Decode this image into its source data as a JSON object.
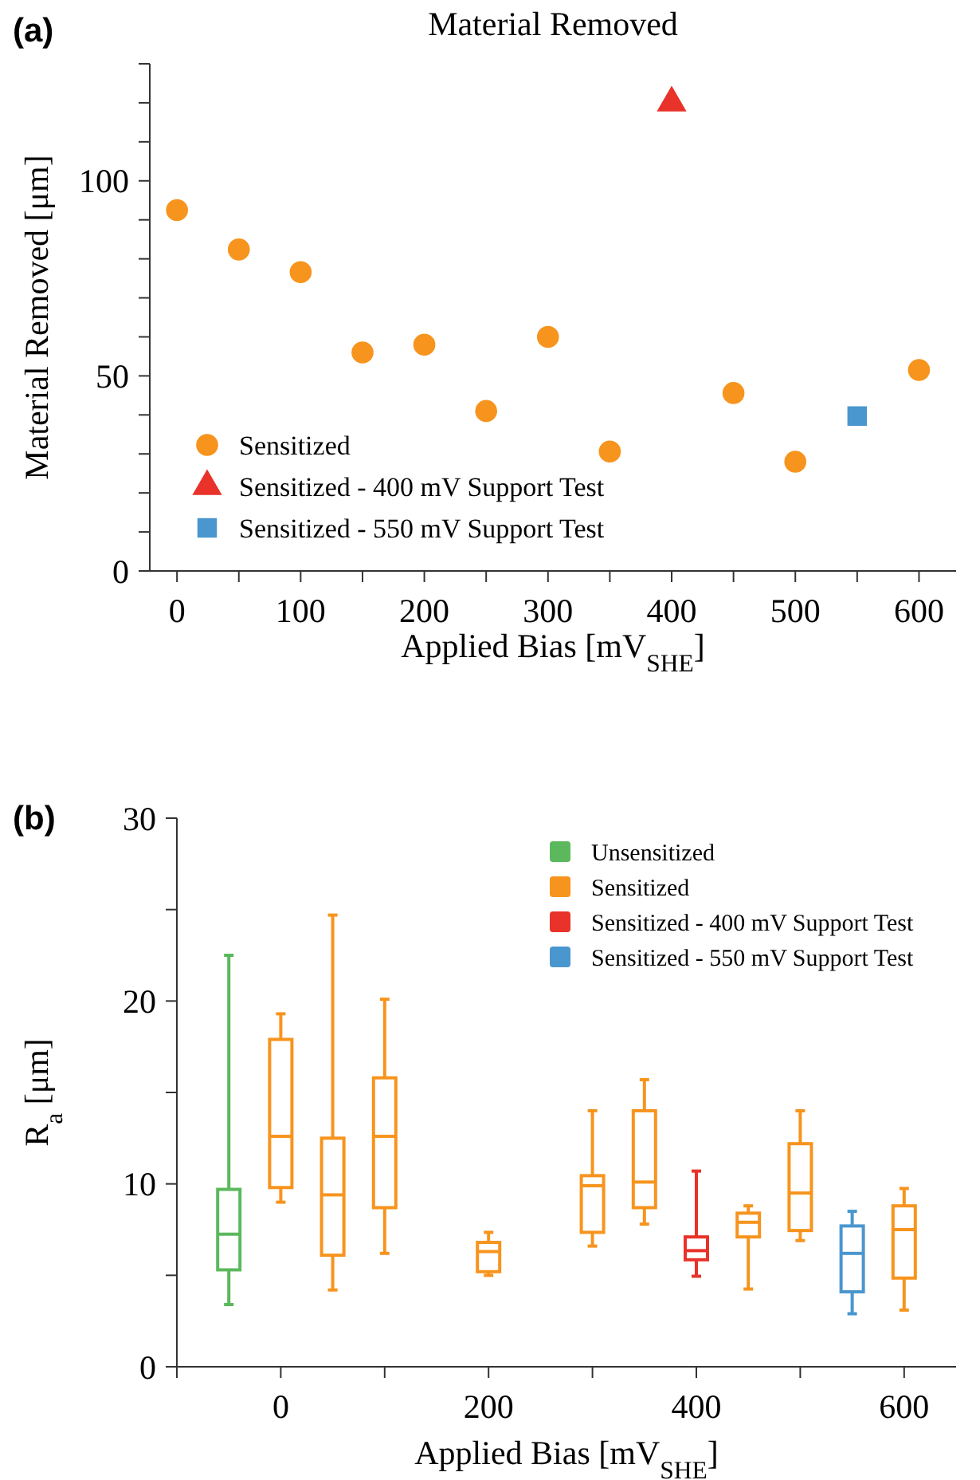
{
  "chart_data": [
    {
      "type": "scatter",
      "title": "Material Removed",
      "xlabel": "Applied Bias [mV$_{SHE}$]",
      "ylabel": "Material Removed [μm]",
      "annotations": [
        "(a)"
      ],
      "xlim": [
        -22,
        630
      ],
      "xticks": [
        0,
        {
          "value": 50,
          "label": null
        },
        100,
        {
          "value": 150,
          "label": null
        },
        200,
        {
          "value": 250,
          "label": null
        },
        300,
        {
          "value": 350,
          "label": null
        },
        400,
        {
          "value": 450,
          "label": null
        },
        500,
        {
          "value": 550,
          "label": null
        },
        600
      ],
      "ylim": [
        0,
        130
      ],
      "yticks": [
        0,
        {
          "value": 10,
          "label": null
        },
        {
          "value": 20,
          "label": null
        },
        {
          "value": 30,
          "label": null
        },
        {
          "value": 40,
          "label": null
        },
        50,
        {
          "value": 60,
          "label": null
        },
        {
          "value": 70,
          "label": null
        },
        {
          "value": 80,
          "label": null
        },
        {
          "value": 90,
          "label": null
        },
        100,
        {
          "value": 110,
          "label": null
        },
        {
          "value": 120,
          "label": null
        },
        {
          "value": 130,
          "label": null
        }
      ],
      "legend": "bottom left",
      "series": [
        {
          "name": "Sensitized",
          "color": "#f7941d",
          "marker": "circle",
          "x": [
            0,
            50,
            100,
            150,
            200,
            250,
            300,
            350,
            450,
            500,
            600
          ],
          "values": [
            92.5,
            82.4,
            76.6,
            56,
            58,
            41,
            60,
            30.6,
            45.6,
            28,
            51.5
          ]
        },
        {
          "name": "Sensitized - 400 mV Support Test",
          "color": "#e8322a",
          "marker": "triangle",
          "x": [
            400
          ],
          "values": [
            120
          ]
        },
        {
          "name": "Sensitized - 550 mV Support Test",
          "color": "#4a96cf",
          "marker": "square",
          "x": [
            550
          ],
          "values": [
            39.7
          ]
        }
      ]
    },
    {
      "type": "box",
      "xlabel": "Applied Bias [mV$_{SHE}$]",
      "ylabel": "R$_{a}$ [μm]",
      "annotations": [
        "(b)"
      ],
      "xlim": [
        -100,
        650
      ],
      "xticks": [
        {
          "value": -100,
          "label": null
        },
        0,
        {
          "value": 100,
          "label": null
        },
        200,
        {
          "value": 300,
          "label": null
        },
        400,
        {
          "value": 500,
          "label": null
        },
        600
      ],
      "ylim": [
        0,
        30
      ],
      "yticks": [
        0,
        {
          "value": 5,
          "label": null
        },
        10,
        {
          "value": 15,
          "label": null
        },
        20,
        {
          "value": 25,
          "label": null
        },
        30
      ],
      "legend": "top right",
      "series": [
        {
          "name": "Unsensitized",
          "color": "#5cb85c",
          "x": [
            -50
          ],
          "boxes": [
            {
              "low": 3.4,
              "q1": 5.3,
              "median": 7.25,
              "q3": 9.7,
              "high": 22.5
            }
          ]
        },
        {
          "name": "Sensitized",
          "color": "#f7941d",
          "x": [
            0,
            50,
            100,
            200,
            300,
            350,
            450,
            500,
            600
          ],
          "boxes": [
            {
              "low": 9.0,
              "q1": 9.8,
              "median": 12.6,
              "q3": 17.9,
              "high": 19.3
            },
            {
              "low": 4.2,
              "q1": 6.1,
              "median": 9.4,
              "q3": 12.5,
              "high": 24.7
            },
            {
              "low": 6.2,
              "q1": 8.7,
              "median": 12.6,
              "q3": 15.8,
              "high": 20.1
            },
            {
              "low": 5.0,
              "q1": 5.2,
              "median": 6.3,
              "q3": 6.8,
              "high": 7.35
            },
            {
              "low": 6.6,
              "q1": 7.35,
              "median": 9.9,
              "q3": 10.45,
              "high": 14.0
            },
            {
              "low": 7.8,
              "q1": 8.7,
              "median": 10.1,
              "q3": 14.0,
              "high": 15.7
            },
            {
              "low": 4.25,
              "q1": 7.1,
              "median": 7.9,
              "q3": 8.4,
              "high": 8.8
            },
            {
              "low": 6.9,
              "q1": 7.45,
              "median": 9.5,
              "q3": 12.2,
              "high": 14.0
            },
            {
              "low": 3.1,
              "q1": 4.85,
              "median": 7.5,
              "q3": 8.8,
              "high": 9.75
            }
          ]
        },
        {
          "name": "Sensitized - 400 mV Support Test",
          "color": "#e8322a",
          "x": [
            400
          ],
          "boxes": [
            {
              "low": 4.95,
              "q1": 5.85,
              "median": 6.35,
              "q3": 7.1,
              "high": 10.7
            }
          ]
        },
        {
          "name": "Sensitized - 550 mV Support Test",
          "color": "#4a96cf",
          "x": [
            550
          ],
          "boxes": [
            {
              "low": 2.9,
              "q1": 4.1,
              "median": 6.2,
              "q3": 7.7,
              "high": 8.5
            }
          ]
        }
      ]
    }
  ]
}
